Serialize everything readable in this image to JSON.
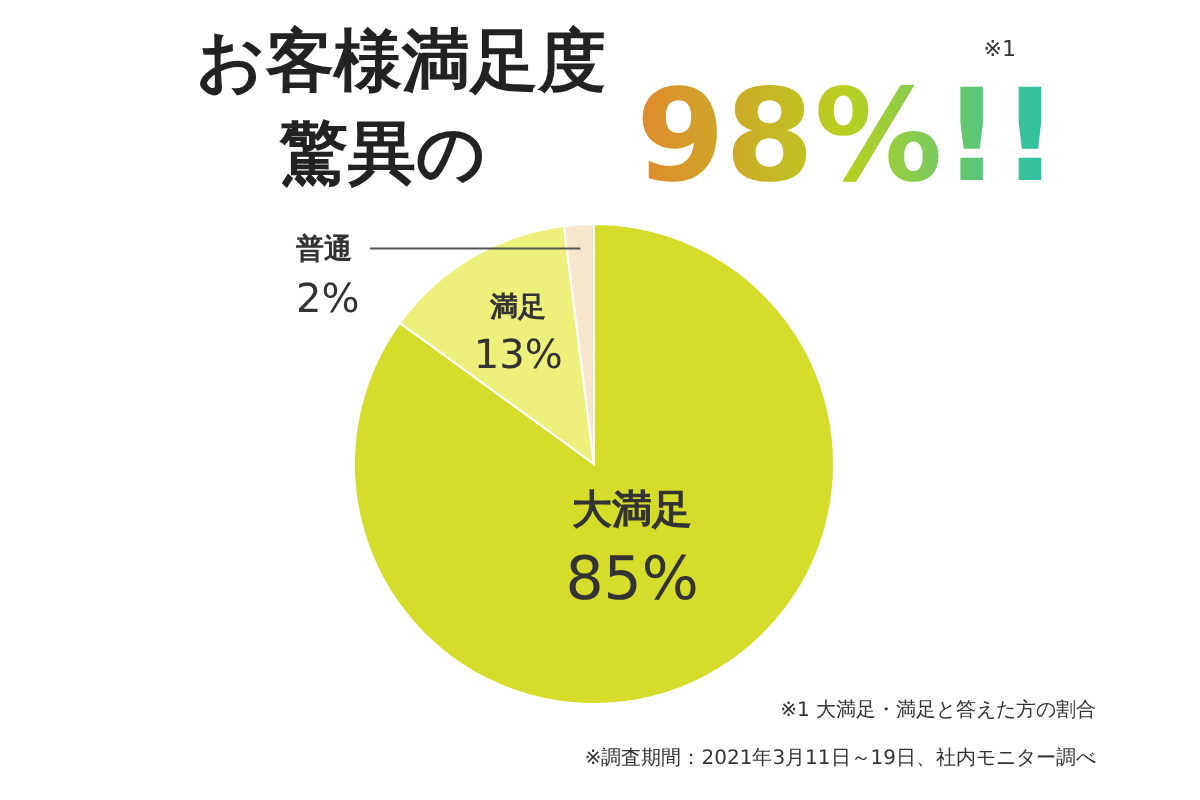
{
  "chart_data": {
    "type": "pie",
    "title": "お客様満足度",
    "subtitle": "驚異の",
    "categories": [
      "大満足",
      "満足",
      "普通"
    ],
    "values": [
      85,
      13,
      2
    ],
    "value_labels": [
      "85%",
      "13%",
      "2%"
    ],
    "colors": [
      "#d6dc2a",
      "#eef07c",
      "#f8e6cc"
    ],
    "annotations": [
      "98%!!",
      "※1",
      "※1 大満足・満足と答えた方の割合",
      "※調査期間：2021年3月11日～19日、社内モニター調べ"
    ]
  }
}
